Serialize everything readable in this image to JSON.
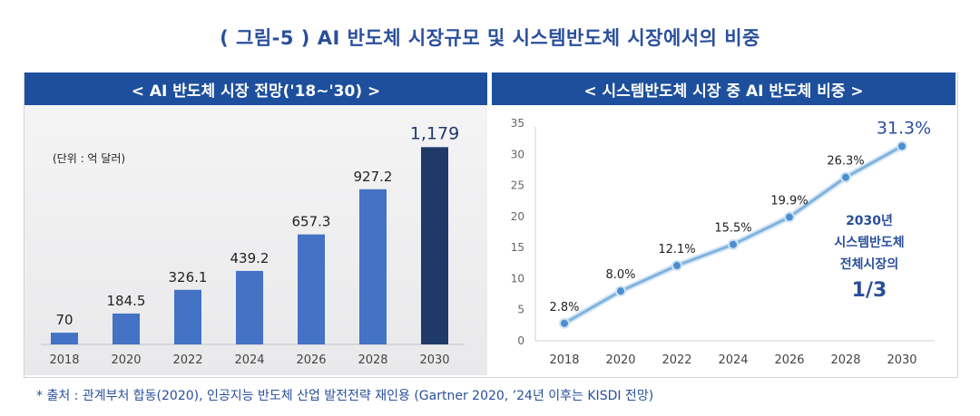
{
  "figure_title": "( 그림-5 ) AI 반도체 시장규모 및 시스템반도체 시장에서의 비중",
  "left_panel": {
    "header": "< AI 반도체 시장 전망('18~'30) >",
    "unit": "(단위 : 억 달러)"
  },
  "right_panel": {
    "header": "< 시스템반도체 시장 중 AI 반도체 비중 >",
    "annotation": {
      "line1": "2030년",
      "line2": "시스템반도체",
      "line3": "전체시장의",
      "line4": "1/3"
    }
  },
  "source": "* 출처 : 관계부처 합동(2020), 인공지능 반도체 산업 발전전략 재인용 (Gartner 2020, ’24년 이후는 KISDI 전망)",
  "colors": {
    "header_bg": "#1d4f9c",
    "bar": "#4472c4",
    "bar_highlight": "#1f3a68",
    "line": "#7fb2de",
    "title": "#2a4f9b"
  },
  "chart_data": [
    {
      "type": "bar",
      "categories": [
        "2018",
        "2020",
        "2022",
        "2024",
        "2026",
        "2028",
        "2030"
      ],
      "values": [
        70,
        184.5,
        326.1,
        439.2,
        657.3,
        927.2,
        1179
      ],
      "value_labels": [
        "70",
        "184.5",
        "326.1",
        "439.2",
        "657.3",
        "927.2",
        "1,179"
      ],
      "ylabel": "",
      "ylim": [
        0,
        1300
      ],
      "grid": false
    },
    {
      "type": "line",
      "x": [
        "2018",
        "2020",
        "2022",
        "2024",
        "2026",
        "2028",
        "2030"
      ],
      "values": [
        2.8,
        8.0,
        12.1,
        15.5,
        19.9,
        26.3,
        31.3
      ],
      "value_labels": [
        "2.8%",
        "8.0%",
        "12.1%",
        "15.5%",
        "19.9%",
        "26.3%",
        "31.3%"
      ],
      "yticks": [
        "0",
        "5",
        "10",
        "15",
        "20",
        "25",
        "30",
        "35"
      ],
      "ylim": [
        0,
        35
      ],
      "grid": false
    }
  ]
}
